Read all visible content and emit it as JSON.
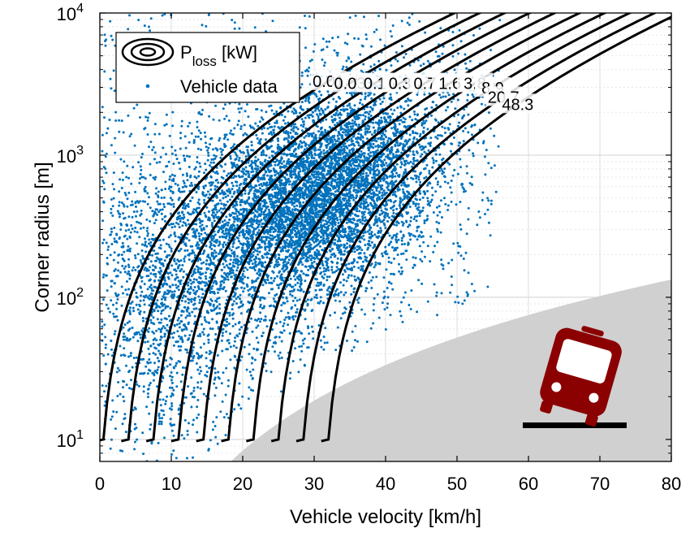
{
  "chart_data": {
    "type": "scatter",
    "xlabel": "Vehicle velocity [km/h]",
    "ylabel": "Corner radius [m]",
    "xlim": [
      0,
      80
    ],
    "ylim": [
      7,
      10000
    ],
    "y_scale": "log",
    "grid": true,
    "legend_placement": "top-left",
    "x_ticks": [
      "0",
      "10",
      "20",
      "30",
      "40",
      "50",
      "60",
      "70",
      "80"
    ],
    "y_ticks": [
      {
        "base": "10",
        "exp": "1"
      },
      {
        "base": "10",
        "exp": "2"
      },
      {
        "base": "10",
        "exp": "3"
      },
      {
        "base": "10",
        "exp": "4"
      }
    ],
    "legend": {
      "contour_label_main": "P",
      "contour_label_sub": "loss",
      "contour_label_unit": " [kW]",
      "scatter_label": "Vehicle data"
    },
    "contour_levels": [
      0.01,
      0.03,
      0.1,
      0.3,
      0.7,
      1.6,
      3.8,
      8.9,
      20.7,
      48.3
    ],
    "contour_label_texts": [
      "0.01",
      "0.03",
      "0.1",
      "0.3",
      "0.7",
      "1.6",
      "3.8",
      "8.9",
      "20.7",
      "48.3"
    ],
    "scatter_color": "#0072BD",
    "contour_color": "#000000",
    "infeasible_region_color": "#d0d0d0",
    "bus_icon_color": "#8B0000",
    "scatter_cluster": {
      "center_velocity": 30,
      "center_radius": 500,
      "approx_points": 9000
    }
  }
}
